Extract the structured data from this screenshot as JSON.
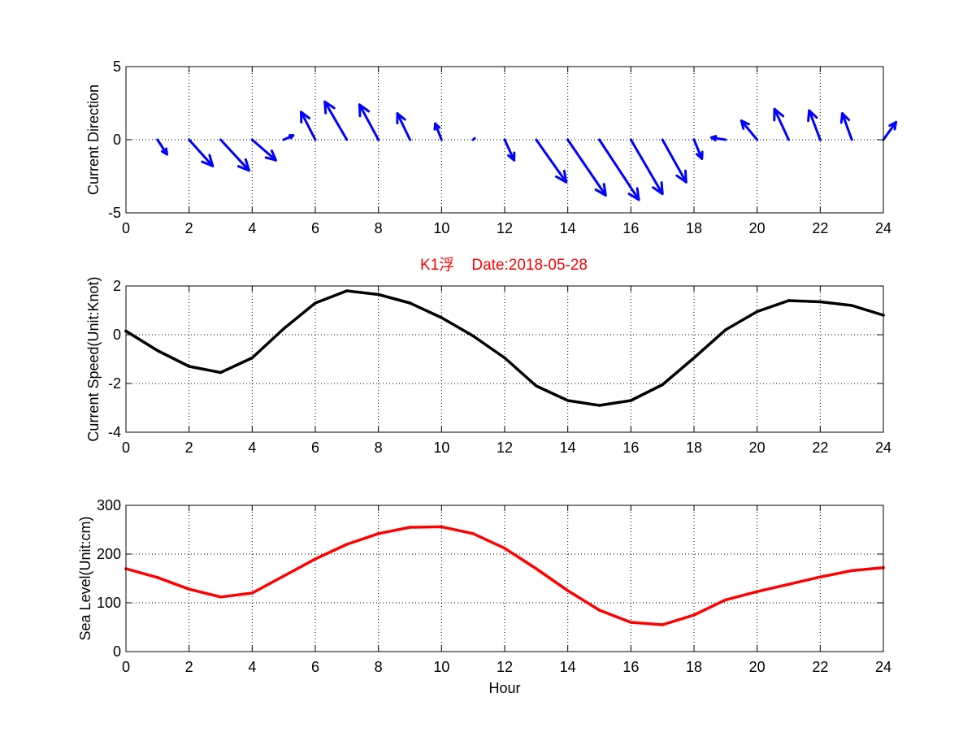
{
  "figure_title": "K1浮    Date:2018-05-28",
  "colors": {
    "title": "#ff0000",
    "direction": "#0000ff",
    "speed": "#000000",
    "sea_level": "#ff0000",
    "axes": "#000000",
    "grid": "#000000"
  },
  "chart_data": [
    {
      "type": "quiver",
      "name": "current-direction",
      "title": "",
      "xlabel": "",
      "ylabel": "Current Direction",
      "xlim": [
        0,
        24
      ],
      "ylim": [
        -5,
        5
      ],
      "xticks": [
        0,
        2,
        4,
        6,
        8,
        10,
        12,
        14,
        16,
        18,
        20,
        22,
        24
      ],
      "yticks": [
        -5,
        0,
        5
      ],
      "grid": true,
      "x": [
        1,
        2,
        3,
        4,
        5,
        6,
        7,
        8,
        9,
        10,
        11,
        12,
        13,
        14,
        15,
        16,
        17,
        18,
        19,
        20,
        21,
        22,
        23,
        24
      ],
      "u": [
        0.3,
        0.75,
        0.9,
        0.75,
        0.3,
        -0.45,
        -0.7,
        -0.6,
        -0.4,
        -0.2,
        0.05,
        0.3,
        0.95,
        1.2,
        1.25,
        1.0,
        0.75,
        0.25,
        -0.45,
        -0.5,
        -0.45,
        -0.35,
        -0.3,
        0.4
      ],
      "v": [
        -1.0,
        -1.8,
        -2.1,
        -1.4,
        0.3,
        1.9,
        2.6,
        2.4,
        1.8,
        1.1,
        0.1,
        -1.4,
        -2.9,
        -3.8,
        -4.1,
        -3.7,
        -2.9,
        -1.3,
        0.15,
        1.3,
        2.1,
        2.0,
        1.8,
        1.2
      ]
    },
    {
      "type": "line",
      "name": "current-speed",
      "title": "K1浮    Date:2018-05-28",
      "xlabel": "",
      "ylabel": "Current Speed(Unit:Knot)",
      "xlim": [
        0,
        24
      ],
      "ylim": [
        -4,
        2
      ],
      "xticks": [
        0,
        2,
        4,
        6,
        8,
        10,
        12,
        14,
        16,
        18,
        20,
        22,
        24
      ],
      "yticks": [
        -4,
        -2,
        0,
        2
      ],
      "grid": true,
      "x": [
        0,
        1,
        2,
        3,
        4,
        5,
        6,
        7,
        8,
        9,
        10,
        11,
        12,
        13,
        14,
        15,
        16,
        17,
        18,
        19,
        20,
        21,
        22,
        23,
        24
      ],
      "values": [
        0.15,
        -0.65,
        -1.3,
        -1.55,
        -0.95,
        0.25,
        1.3,
        1.8,
        1.65,
        1.3,
        0.7,
        -0.05,
        -0.95,
        -2.1,
        -2.7,
        -2.9,
        -2.7,
        -2.05,
        -0.95,
        0.2,
        0.95,
        1.4,
        1.35,
        1.2,
        0.8
      ]
    },
    {
      "type": "line",
      "name": "sea-level",
      "title": "",
      "xlabel": "Hour",
      "ylabel": "Sea Level(Unit:cm)",
      "xlim": [
        0,
        24
      ],
      "ylim": [
        0,
        300
      ],
      "xticks": [
        0,
        2,
        4,
        6,
        8,
        10,
        12,
        14,
        16,
        18,
        20,
        22,
        24
      ],
      "yticks": [
        0,
        100,
        200,
        300
      ],
      "grid": true,
      "x": [
        0,
        1,
        2,
        3,
        4,
        5,
        6,
        7,
        8,
        9,
        10,
        11,
        12,
        13,
        14,
        15,
        16,
        17,
        18,
        19,
        20,
        21,
        22,
        23,
        24
      ],
      "values": [
        170,
        152,
        128,
        112,
        120,
        155,
        190,
        220,
        242,
        255,
        256,
        242,
        212,
        170,
        125,
        85,
        60,
        55,
        75,
        106,
        123,
        138,
        153,
        166,
        172
      ]
    }
  ]
}
